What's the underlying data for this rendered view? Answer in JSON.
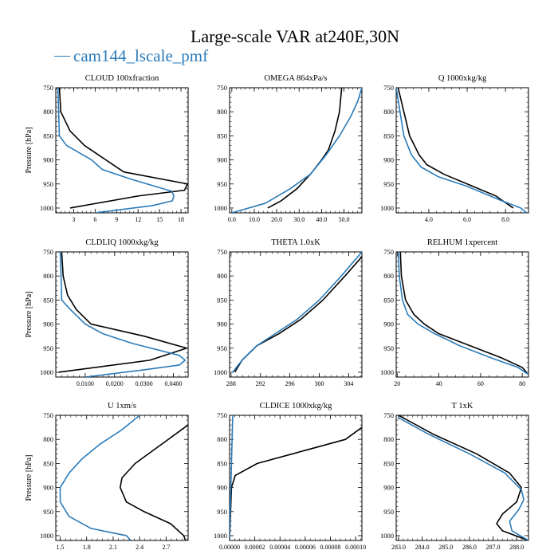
{
  "page": {
    "title": "Large-scale VAR at240E,30N",
    "legend": {
      "marker": "—",
      "label": "cam144_lscale_pmf"
    }
  },
  "colors": {
    "series_black": "#000000",
    "series_blue": "#2b7bb9",
    "axes": "#000000"
  },
  "chart_data": [
    {
      "type": "line",
      "title": "CLOUD 100xfraction",
      "xlabel": "",
      "ylabel": "Pressure [hPa]",
      "xlim": [
        0.5,
        19
      ],
      "ylim": [
        1010,
        750
      ],
      "y_inverted": true,
      "grid": false,
      "x_ticks": [
        3,
        6,
        9,
        12,
        15,
        18
      ],
      "x_tick_labels": [
        "3",
        "6",
        "9",
        "12",
        "15",
        "18"
      ],
      "y_ticks": [
        750,
        800,
        850,
        900,
        950,
        1000
      ],
      "series": [
        {
          "color": "black",
          "points": [
            [
              1.0,
              750
            ],
            [
              1.2,
              800
            ],
            [
              2.5,
              840
            ],
            [
              4.5,
              870
            ],
            [
              6.5,
              890
            ],
            [
              10,
              925
            ],
            [
              18.9,
              950
            ],
            [
              18.5,
              963
            ],
            [
              12,
              975
            ],
            [
              2.5,
              1000
            ]
          ]
        },
        {
          "color": "blue",
          "points": [
            [
              0.8,
              750
            ],
            [
              0.9,
              800
            ],
            [
              1.0,
              850
            ],
            [
              2.0,
              870
            ],
            [
              5.5,
              900
            ],
            [
              7.0,
              920
            ],
            [
              11,
              940
            ],
            [
              16.7,
              965
            ],
            [
              17.0,
              975
            ],
            [
              16.8,
              985
            ],
            [
              14,
              995
            ],
            [
              6,
              1010
            ]
          ]
        }
      ]
    },
    {
      "type": "line",
      "title": "OMEGA 864xPa/s",
      "xlabel": "",
      "ylabel": "",
      "xlim": [
        -1,
        58
      ],
      "ylim": [
        1010,
        750
      ],
      "y_inverted": true,
      "grid": false,
      "x_ticks": [
        0,
        10,
        20,
        30,
        40,
        50
      ],
      "x_tick_labels": [
        "0.0",
        "10.0",
        "20.0",
        "30.0",
        "40.0",
        "50.0"
      ],
      "y_ticks": [
        750,
        800,
        850,
        900,
        950,
        1000
      ],
      "series": [
        {
          "color": "black",
          "points": [
            [
              49,
              750
            ],
            [
              48,
              800
            ],
            [
              46,
              840
            ],
            [
              43,
              880
            ],
            [
              40,
              900
            ],
            [
              35,
              930
            ],
            [
              29,
              960
            ],
            [
              22,
              985
            ],
            [
              16,
              1000
            ]
          ]
        },
        {
          "color": "blue",
          "points": [
            [
              58,
              750
            ],
            [
              56,
              780
            ],
            [
              53,
              810
            ],
            [
              48,
              850
            ],
            [
              42,
              890
            ],
            [
              35,
              930
            ],
            [
              26,
              960
            ],
            [
              15,
              990
            ],
            [
              0,
              1010
            ]
          ]
        }
      ]
    },
    {
      "type": "line",
      "title": "Q 1000xkg/kg",
      "xlabel": "",
      "ylabel": "",
      "xlim": [
        2.3,
        9.2
      ],
      "ylim": [
        1010,
        750
      ],
      "y_inverted": true,
      "grid": false,
      "x_ticks": [
        4,
        6,
        8
      ],
      "x_tick_labels": [
        "4.0",
        "6.0",
        "8.0"
      ],
      "y_ticks": [
        750,
        800,
        850,
        900,
        950,
        1000
      ],
      "series": [
        {
          "color": "black",
          "points": [
            [
              2.4,
              750
            ],
            [
              2.7,
              800
            ],
            [
              3.0,
              850
            ],
            [
              3.5,
              890
            ],
            [
              3.9,
              910
            ],
            [
              4.8,
              930
            ],
            [
              6.0,
              950
            ],
            [
              7.5,
              975
            ],
            [
              8.4,
              1000
            ]
          ]
        },
        {
          "color": "blue",
          "points": [
            [
              2.3,
              750
            ],
            [
              2.5,
              800
            ],
            [
              2.7,
              850
            ],
            [
              3.1,
              890
            ],
            [
              3.6,
              915
            ],
            [
              4.5,
              935
            ],
            [
              6.0,
              955
            ],
            [
              7.8,
              985
            ],
            [
              8.8,
              1000
            ],
            [
              9.1,
              1010
            ]
          ]
        }
      ]
    },
    {
      "type": "line",
      "title": "CLDLIQ 1000xkg/kg",
      "xlabel": "",
      "ylabel": "Pressure [hPa]",
      "xlim": [
        0.0,
        0.045
      ],
      "ylim": [
        1010,
        750
      ],
      "y_inverted": true,
      "grid": false,
      "x_ticks": [
        0.01,
        0.02,
        0.03,
        0.04
      ],
      "x_tick_labels": [
        "0.0100",
        "0.0200",
        "0.0300",
        "0.0400"
      ],
      "y_ticks": [
        750,
        800,
        850,
        900,
        950,
        1000
      ],
      "series": [
        {
          "color": "black",
          "points": [
            [
              0.002,
              750
            ],
            [
              0.0025,
              800
            ],
            [
              0.004,
              840
            ],
            [
              0.007,
              870
            ],
            [
              0.012,
              900
            ],
            [
              0.03,
              925
            ],
            [
              0.0445,
              950
            ],
            [
              0.032,
              975
            ],
            [
              0.001,
              1000
            ]
          ]
        },
        {
          "color": "blue",
          "points": [
            [
              0.0015,
              750
            ],
            [
              0.0018,
              800
            ],
            [
              0.002,
              850
            ],
            [
              0.005,
              870
            ],
            [
              0.01,
              900
            ],
            [
              0.016,
              920
            ],
            [
              0.026,
              940
            ],
            [
              0.042,
              965
            ],
            [
              0.044,
              975
            ],
            [
              0.042,
              985
            ],
            [
              0.03,
              995
            ],
            [
              0.01,
              1010
            ]
          ]
        }
      ]
    },
    {
      "type": "line",
      "title": "THETA 1.0xK",
      "xlabel": "",
      "ylabel": "",
      "xlim": [
        287.8,
        305.8
      ],
      "ylim": [
        1010,
        750
      ],
      "y_inverted": true,
      "grid": false,
      "x_ticks": [
        288,
        292,
        296,
        300,
        304
      ],
      "x_tick_labels": [
        "288",
        "292",
        "296",
        "300",
        "304"
      ],
      "y_ticks": [
        750,
        800,
        850,
        900,
        950,
        1000
      ],
      "series": [
        {
          "color": "black",
          "points": [
            [
              305.8,
              760
            ],
            [
              303.5,
              800
            ],
            [
              300.5,
              850
            ],
            [
              297.5,
              890
            ],
            [
              294.5,
              920
            ],
            [
              291.5,
              945
            ],
            [
              289.5,
              975
            ],
            [
              288.5,
              1000
            ]
          ]
        },
        {
          "color": "blue",
          "points": [
            [
              305.8,
              750
            ],
            [
              303.0,
              800
            ],
            [
              300.0,
              850
            ],
            [
              297.0,
              890
            ],
            [
              294.0,
              920
            ],
            [
              291.5,
              945
            ],
            [
              289.5,
              975
            ],
            [
              288.2,
              1000
            ]
          ]
        }
      ]
    },
    {
      "type": "line",
      "title": "RELHUM 1xpercent",
      "xlabel": "",
      "ylabel": "",
      "xlim": [
        19.5,
        83
      ],
      "ylim": [
        1010,
        750
      ],
      "y_inverted": true,
      "grid": false,
      "x_ticks": [
        20,
        40,
        60,
        80
      ],
      "x_tick_labels": [
        "20",
        "40",
        "60",
        "80"
      ],
      "y_ticks": [
        750,
        800,
        850,
        900,
        950,
        1000
      ],
      "series": [
        {
          "color": "black",
          "points": [
            [
              21.5,
              750
            ],
            [
              22,
              800
            ],
            [
              24,
              850
            ],
            [
              28,
              880
            ],
            [
              33,
              900
            ],
            [
              40,
              920
            ],
            [
              55,
              945
            ],
            [
              70,
              970
            ],
            [
              80,
              990
            ],
            [
              82,
              1000
            ]
          ]
        },
        {
          "color": "blue",
          "points": [
            [
              20.5,
              750
            ],
            [
              21,
              800
            ],
            [
              22.5,
              850
            ],
            [
              25,
              880
            ],
            [
              30,
              900
            ],
            [
              38,
              920
            ],
            [
              50,
              945
            ],
            [
              65,
              970
            ],
            [
              78,
              990
            ],
            [
              83,
              1005
            ]
          ]
        }
      ]
    },
    {
      "type": "line",
      "title": "U 1xm/s",
      "xlabel": "",
      "ylabel": "Pressure [hPa]",
      "xlim": [
        1.45,
        2.95
      ],
      "ylim": [
        1010,
        750
      ],
      "y_inverted": true,
      "grid": false,
      "x_ticks": [
        1.5,
        1.8,
        2.1,
        2.4,
        2.7
      ],
      "x_tick_labels": [
        "1.5",
        "1.8",
        "2.1",
        "2.4",
        "2.7"
      ],
      "y_ticks": [
        750,
        800,
        850,
        900,
        950,
        1000
      ],
      "series": [
        {
          "color": "black",
          "points": [
            [
              2.95,
              770
            ],
            [
              2.65,
              810
            ],
            [
              2.35,
              850
            ],
            [
              2.2,
              880
            ],
            [
              2.18,
              900
            ],
            [
              2.25,
              930
            ],
            [
              2.45,
              950
            ],
            [
              2.75,
              975
            ],
            [
              2.9,
              1000
            ],
            [
              2.92,
              1010
            ]
          ]
        },
        {
          "color": "blue",
          "points": [
            [
              2.4,
              750
            ],
            [
              2.2,
              780
            ],
            [
              1.95,
              810
            ],
            [
              1.75,
              840
            ],
            [
              1.6,
              870
            ],
            [
              1.5,
              900
            ],
            [
              1.5,
              930
            ],
            [
              1.6,
              960
            ],
            [
              1.85,
              985
            ],
            [
              2.25,
              1000
            ],
            [
              2.3,
              1010
            ]
          ]
        }
      ]
    },
    {
      "type": "line",
      "title": "CLDICE 1000xkg/kg",
      "xlabel": "",
      "ylabel": "",
      "xlim": [
        0.0,
        0.000105
      ],
      "ylim": [
        1010,
        750
      ],
      "y_inverted": true,
      "grid": false,
      "x_ticks": [
        0.0,
        2e-05,
        4e-05,
        6e-05,
        8e-05,
        0.0001
      ],
      "x_tick_labels": [
        "0.00000",
        "0.00002",
        "0.00004",
        "0.00006",
        "0.00008",
        "0.00010"
      ],
      "y_ticks": [
        750,
        800,
        850,
        900,
        950,
        1000
      ],
      "series": [
        {
          "color": "black",
          "points": [
            [
              0.000105,
              775
            ],
            [
              9.2e-05,
              800
            ],
            [
              5e-05,
              830
            ],
            [
              2.2e-05,
              850
            ],
            [
              4.5e-06,
              875
            ],
            [
              1.5e-06,
              900
            ],
            [
              0.0,
              1010
            ]
          ]
        },
        {
          "color": "blue",
          "points": [
            [
              2.5e-06,
              750
            ],
            [
              2e-06,
              800
            ],
            [
              1.5e-06,
              850
            ],
            [
              1e-06,
              900
            ],
            [
              5e-07,
              950
            ],
            [
              0.0,
              1010
            ]
          ]
        }
      ]
    },
    {
      "type": "line",
      "title": "T 1xK",
      "xlabel": "",
      "ylabel": "",
      "xlim": [
        282.9,
        288.5
      ],
      "ylim": [
        1010,
        750
      ],
      "y_inverted": true,
      "grid": false,
      "x_ticks": [
        283.0,
        284.0,
        285.0,
        286.0,
        287.0,
        288.0
      ],
      "x_tick_labels": [
        "283.0",
        "284.0",
        "285.0",
        "286.0",
        "287.0",
        "288.0"
      ],
      "y_ticks": [
        750,
        800,
        850,
        900,
        950,
        1000
      ],
      "series": [
        {
          "color": "black",
          "points": [
            [
              283.0,
              750
            ],
            [
              284.5,
              790
            ],
            [
              286.3,
              830
            ],
            [
              287.7,
              870
            ],
            [
              288.2,
              900
            ],
            [
              288.0,
              930
            ],
            [
              287.4,
              955
            ],
            [
              287.15,
              975
            ],
            [
              287.4,
              990
            ],
            [
              288.5,
              1010
            ]
          ]
        },
        {
          "color": "blue",
          "points": [
            [
              283.0,
              755
            ],
            [
              284.3,
              790
            ],
            [
              286.0,
              830
            ],
            [
              287.5,
              870
            ],
            [
              288.2,
              905
            ],
            [
              288.3,
              925
            ],
            [
              288.1,
              945
            ],
            [
              287.7,
              970
            ],
            [
              287.8,
              990
            ],
            [
              288.5,
              1010
            ]
          ]
        }
      ]
    }
  ]
}
